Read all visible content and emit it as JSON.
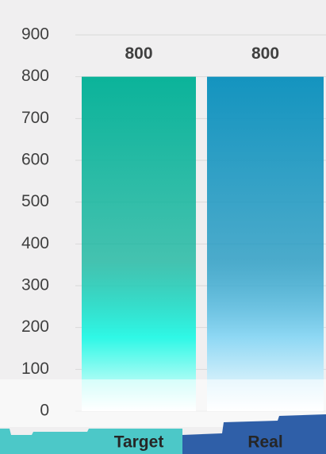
{
  "chart_data": {
    "type": "bar",
    "categories": [
      "Target",
      "Real"
    ],
    "values": [
      800,
      800
    ],
    "colors": [
      "#0bb39a",
      "#1494bf"
    ],
    "ylim": [
      0,
      900
    ],
    "yticks": [
      0,
      100,
      200,
      300,
      400,
      500,
      600,
      700,
      800,
      900
    ],
    "grid": true
  }
}
